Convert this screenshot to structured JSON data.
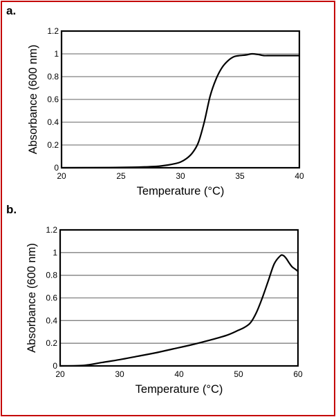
{
  "colors": {
    "frame_border": "#c40000",
    "grid": "#808080",
    "curve": "#000000",
    "plot_border": "#000000"
  },
  "chart_data": [
    {
      "panel_label": "a.",
      "type": "line",
      "xlabel": "Temperature (°C)",
      "ylabel": "Absorbance (600 nm)",
      "xlim": [
        20,
        40
      ],
      "ylim": [
        0,
        1.2
      ],
      "grid": true,
      "x_ticks": [
        20,
        25,
        30,
        35,
        40
      ],
      "y_ticks": [
        0,
        0.2,
        0.4,
        0.6,
        0.8,
        1,
        1.2
      ],
      "x_tick_labels": [
        "20",
        "25",
        "30",
        "35",
        "40"
      ],
      "y_tick_labels": [
        "0",
        "0.2",
        "0.4",
        "0.6",
        "0.8",
        "1",
        "1.2"
      ],
      "series": [
        {
          "x": [
            20,
            24,
            26,
            27,
            28,
            29,
            29.5,
            30,
            30.5,
            31,
            31.5,
            32,
            32.5,
            33,
            33.5,
            34,
            34.5,
            35,
            35.5,
            36,
            36.5,
            37,
            37.5,
            38,
            38.5,
            39,
            39.5,
            40
          ],
          "y": [
            0,
            0.002,
            0.005,
            0.008,
            0.012,
            0.025,
            0.035,
            0.05,
            0.08,
            0.13,
            0.22,
            0.4,
            0.63,
            0.78,
            0.88,
            0.94,
            0.975,
            0.985,
            0.99,
            1.0,
            0.995,
            0.985,
            0.985,
            0.985,
            0.985,
            0.985,
            0.985,
            0.985
          ]
        }
      ]
    },
    {
      "panel_label": "b.",
      "type": "line",
      "xlabel": "Temperature (°C)",
      "ylabel": "Absorbance (600 nm)",
      "xlim": [
        20,
        60
      ],
      "ylim": [
        0,
        1.2
      ],
      "grid": true,
      "x_ticks": [
        20,
        30,
        40,
        50,
        60
      ],
      "y_ticks": [
        0,
        0.2,
        0.4,
        0.6,
        0.8,
        1,
        1.2
      ],
      "x_tick_labels": [
        "20",
        "30",
        "40",
        "50",
        "60"
      ],
      "y_tick_labels": [
        "0",
        "0.2",
        "0.4",
        "0.6",
        "0.8",
        "1",
        "1.2"
      ],
      "series": [
        {
          "x": [
            20,
            24,
            27,
            30,
            33,
            36,
            39,
            42,
            45,
            48,
            50,
            51,
            52,
            53,
            54,
            55,
            56,
            57,
            57.5,
            58,
            58.5,
            59,
            59.5,
            60
          ],
          "y": [
            0,
            0.005,
            0.03,
            0.055,
            0.085,
            0.115,
            0.15,
            0.185,
            0.225,
            0.27,
            0.315,
            0.34,
            0.38,
            0.47,
            0.6,
            0.75,
            0.9,
            0.97,
            0.975,
            0.95,
            0.91,
            0.875,
            0.855,
            0.835
          ]
        }
      ]
    }
  ]
}
